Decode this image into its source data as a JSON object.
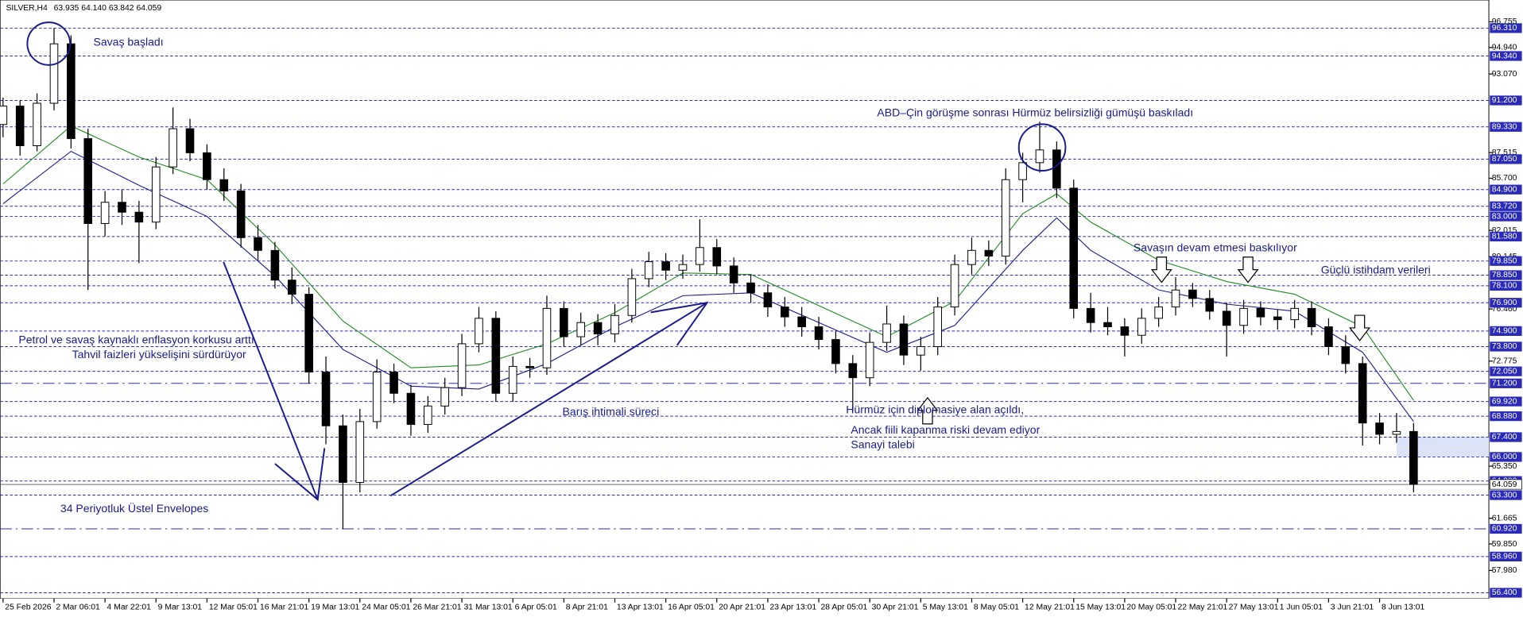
{
  "chart_data": {
    "type": "candlestick",
    "header": {
      "symbol": "SILVER,H4",
      "quote": [
        "63.935",
        "64.140",
        "63.842",
        "64.059"
      ]
    },
    "annotations": [
      "Savaş başladı",
      "ABD–Çin görüşme sonrası Hürmüz belirsizliği gümüşü baskıladı",
      "Savaşın devam etmesi baskılıyor",
      "Güçlü istihdam verileri",
      "Petrol ve savaş kaynaklı enflasyon korkusu arttı",
      "Tahvil faizleri yükselişini sürdürüyor",
      "Barış ihtimali süreci",
      "Hürmüz için diplomasiye alan açıldı,",
      "Ancak fiili kapanma riski devam ediyor",
      "Sanayi talebi",
      "34 Periyotluk Üstel Envelopes"
    ],
    "candle_up_color": "#ffffff",
    "candle_down_color": "#000000",
    "candles": [
      [
        89.5,
        91.4,
        88.6,
        90.8
      ],
      [
        90.8,
        91.2,
        87.3,
        88
      ],
      [
        88,
        91.7,
        87.6,
        91
      ],
      [
        91,
        96.3,
        90.5,
        95.2
      ],
      [
        95.2,
        95.8,
        87.8,
        88.5
      ],
      [
        88.5,
        89.2,
        77.8,
        82.5
      ],
      [
        82.5,
        84.8,
        81.6,
        84
      ],
      [
        84,
        84.9,
        82.4,
        83.3
      ],
      [
        83.3,
        84.1,
        79.7,
        82.6
      ],
      [
        82.6,
        87.2,
        82.1,
        86.5
      ],
      [
        86.5,
        90.7,
        86,
        89.2
      ],
      [
        89.2,
        89.9,
        86.9,
        87.5
      ],
      [
        87.5,
        88.1,
        84.9,
        85.6
      ],
      [
        85.6,
        86.4,
        84.1,
        84.8
      ],
      [
        84.8,
        85.3,
        80.8,
        81.5
      ],
      [
        81.5,
        82.4,
        79.9,
        80.6
      ],
      [
        80.6,
        81.2,
        77.9,
        78.5
      ],
      [
        78.5,
        79.4,
        76.8,
        77.5
      ],
      [
        77.5,
        78,
        71.2,
        72
      ],
      [
        72,
        73.1,
        66.9,
        68.2
      ],
      [
        68.2,
        69,
        60.9,
        64.2
      ],
      [
        64.2,
        69.4,
        63.5,
        68.5
      ],
      [
        68.5,
        72.9,
        68,
        72
      ],
      [
        72,
        72.6,
        69.8,
        70.5
      ],
      [
        70.5,
        71.1,
        67.5,
        68.3
      ],
      [
        68.3,
        70.3,
        67.7,
        69.6
      ],
      [
        69.6,
        71.6,
        69,
        70.9
      ],
      [
        70.9,
        74.7,
        70.3,
        74
      ],
      [
        74,
        76.6,
        73.4,
        75.8
      ],
      [
        75.8,
        76.3,
        69.9,
        70.5
      ],
      [
        70.5,
        73.1,
        69.9,
        72.4
      ],
      [
        72.4,
        73,
        71.6,
        72.3
      ],
      [
        72.3,
        77.4,
        71.8,
        76.5
      ],
      [
        76.5,
        77,
        73.8,
        74.5
      ],
      [
        74.5,
        76.2,
        73.9,
        75.5
      ],
      [
        75.5,
        76.1,
        73.9,
        74.7
      ],
      [
        74.7,
        76.8,
        74.1,
        76
      ],
      [
        76,
        79.3,
        75.5,
        78.6
      ],
      [
        78.6,
        80.5,
        78,
        79.8
      ],
      [
        79.8,
        80.4,
        78.5,
        79.2
      ],
      [
        79.2,
        80.3,
        78.6,
        79.6
      ],
      [
        79.6,
        82.8,
        79.1,
        80.8
      ],
      [
        80.8,
        81.4,
        78.9,
        79.5
      ],
      [
        79.5,
        80.1,
        77.6,
        78.3
      ],
      [
        78.3,
        78.9,
        76.9,
        77.6
      ],
      [
        77.6,
        78.2,
        75.9,
        76.6
      ],
      [
        76.6,
        77.3,
        75.2,
        75.9
      ],
      [
        75.9,
        76.6,
        74.5,
        75.2
      ],
      [
        75.2,
        75.9,
        73.6,
        74.3
      ],
      [
        74.3,
        74.9,
        71.9,
        72.6
      ],
      [
        72.6,
        73.2,
        69.2,
        71.6
      ],
      [
        71.6,
        74.8,
        71,
        74.1
      ],
      [
        74.1,
        76.7,
        73.5,
        75.4
      ],
      [
        75.4,
        76,
        72.5,
        73.2
      ],
      [
        73.2,
        74.5,
        72.1,
        73.8
      ],
      [
        73.8,
        77.3,
        73.2,
        76.6
      ],
      [
        76.6,
        80.3,
        76,
        79.6
      ],
      [
        79.6,
        81.5,
        78.9,
        80.6
      ],
      [
        80.6,
        81.3,
        79.5,
        80.2
      ],
      [
        80.2,
        86.4,
        79.6,
        85.6
      ],
      [
        85.6,
        87.5,
        84,
        86.8
      ],
      [
        86.8,
        89.7,
        86.1,
        87.7
      ],
      [
        87.7,
        88.3,
        84.3,
        85
      ],
      [
        85,
        85.6,
        75.8,
        76.5
      ],
      [
        76.5,
        77.6,
        74.8,
        75.5
      ],
      [
        75.5,
        76.6,
        74.6,
        75.2
      ],
      [
        75.2,
        75.8,
        73.1,
        74.6
      ],
      [
        74.6,
        76.5,
        74,
        75.8
      ],
      [
        75.8,
        77.3,
        75.2,
        76.6
      ],
      [
        76.6,
        78.7,
        76,
        77.8
      ],
      [
        77.8,
        78.3,
        76.6,
        77.2
      ],
      [
        77.2,
        77.8,
        75.7,
        76.3
      ],
      [
        76.3,
        76.9,
        73.1,
        75.3
      ],
      [
        75.3,
        77.1,
        74.7,
        76.5
      ],
      [
        76.5,
        77,
        75.3,
        75.9
      ],
      [
        75.9,
        76.4,
        75,
        75.7
      ],
      [
        75.7,
        77.1,
        75.1,
        76.5
      ],
      [
        76.5,
        77,
        74.6,
        75.2
      ],
      [
        75.2,
        75.8,
        73.2,
        73.8
      ],
      [
        73.8,
        74.6,
        71.9,
        72.6
      ],
      [
        72.6,
        73.1,
        66.8,
        68.4
      ],
      [
        68.4,
        69.1,
        66.9,
        67.6
      ],
      [
        67.6,
        69.1,
        67,
        67.8
      ],
      [
        67.8,
        68.4,
        63.5,
        64.06
      ]
    ],
    "envelopes": [
      {
        "color": "#1f8a1f",
        "x": [
          0,
          4,
          8,
          12,
          16,
          20,
          24,
          28,
          32,
          36,
          40,
          44,
          48,
          52,
          56,
          60,
          62,
          64,
          68,
          72,
          76,
          80,
          83
        ],
        "values": [
          85.3,
          89.4,
          87.2,
          85.6,
          81,
          75.6,
          72.3,
          72.5,
          74,
          76.2,
          79,
          78.9,
          76.7,
          74.5,
          77,
          83.2,
          84.6,
          82.6,
          79.9,
          78.4,
          77.5,
          75.2,
          70
        ]
      },
      {
        "color": "#1a1a8c",
        "x": [
          0,
          4,
          8,
          12,
          16,
          20,
          24,
          28,
          32,
          36,
          40,
          44,
          48,
          52,
          56,
          60,
          62,
          64,
          68,
          72,
          76,
          80,
          83
        ],
        "values": [
          83.9,
          87.6,
          85.2,
          83,
          78.8,
          73.6,
          71,
          70.8,
          72.6,
          75.2,
          77.4,
          77.6,
          75.5,
          73.4,
          75.3,
          80.6,
          82.9,
          80.6,
          77.8,
          76.8,
          76.3,
          73.4,
          68.5
        ]
      }
    ],
    "xlim": [
      -0.17,
      87.43
    ],
    "xticks": [
      {
        "value": 0,
        "label": "25 Feb 2026"
      },
      {
        "value": 3,
        "label": "2 Mar 06:01"
      },
      {
        "value": 6,
        "label": "4 Mar 22:01"
      },
      {
        "value": 9,
        "label": "9 Mar 13:01"
      },
      {
        "value": 12,
        "label": "12 Mar 05:01"
      },
      {
        "value": 15,
        "label": "16 Mar 21:01"
      },
      {
        "value": 18,
        "label": "19 Mar 13:01"
      },
      {
        "value": 21,
        "label": "24 Mar 05:01"
      },
      {
        "value": 24,
        "label": "26 Mar 21:01"
      },
      {
        "value": 27,
        "label": "31 Mar 13:01"
      },
      {
        "value": 30,
        "label": "6 Apr 05:01"
      },
      {
        "value": 33,
        "label": "8 Apr 21:01"
      },
      {
        "value": 36,
        "label": "13 Apr 13:01"
      },
      {
        "value": 39,
        "label": "16 Apr 05:01"
      },
      {
        "value": 42,
        "label": "20 Apr 21:01"
      },
      {
        "value": 45,
        "label": "23 Apr 13:01"
      },
      {
        "value": 48,
        "label": "28 Apr 05:01"
      },
      {
        "value": 51,
        "label": "30 Apr 21:01"
      },
      {
        "value": 54,
        "label": "5 May 13:01"
      },
      {
        "value": 57,
        "label": "8 May 05:01"
      },
      {
        "value": 60,
        "label": "12 May 21:01"
      },
      {
        "value": 63,
        "label": "15 May 13:01"
      },
      {
        "value": 66,
        "label": "20 May 05:01"
      },
      {
        "value": 69,
        "label": "22 May 21:01"
      },
      {
        "value": 72,
        "label": "27 May 13:01"
      },
      {
        "value": 75,
        "label": "1 Jun 05:01"
      },
      {
        "value": 78,
        "label": "3 Jun 21:01"
      },
      {
        "value": 81,
        "label": "8 Jun 13:01"
      }
    ],
    "ylim": [
      55.99,
      97.27
    ],
    "yticks": [
      96.755,
      {
        "value": 94.94,
        "label": "94.940"
      },
      {
        "value": 93.07,
        "label": "93.070"
      },
      87.515,
      {
        "value": 85.7,
        "label": "85.700"
      },
      82.015,
      80.145,
      {
        "value": 76.46,
        "label": "76.460"
      },
      72.775,
      {
        "value": 65.35,
        "label": "65.350"
      },
      61.665,
      {
        "value": 59.85,
        "label": "59.850"
      },
      {
        "value": 57.98,
        "label": "57.980"
      }
    ],
    "levels": [
      {
        "value": 96.31,
        "label": "96.310"
      },
      {
        "value": 94.34,
        "label": "94.340"
      },
      {
        "value": 91.2,
        "label": "91.200"
      },
      {
        "value": 89.33,
        "label": "89.330"
      },
      {
        "value": 87.05,
        "label": "87.050"
      },
      {
        "value": 84.9,
        "label": "84.900"
      },
      {
        "value": 83.72,
        "label": "83.720"
      },
      {
        "value": 83,
        "label": "83.000"
      },
      {
        "value": 81.58,
        "label": "81.580"
      },
      {
        "value": 79.85,
        "label": "79.850"
      },
      {
        "value": 78.85,
        "label": "78.850"
      },
      {
        "value": 78.1,
        "label": "78.100"
      },
      {
        "value": 76.9,
        "label": "76.900"
      },
      {
        "value": 74.9,
        "label": "74.900"
      },
      {
        "value": 73.8,
        "label": "73.800"
      },
      {
        "value": 72.05,
        "label": "72.050"
      },
      {
        "value": 69.92,
        "label": "69.920"
      },
      {
        "value": 68.88,
        "label": "68.880"
      },
      {
        "value": 67.4,
        "label": "67.400"
      },
      {
        "value": 66,
        "label": "66.000"
      },
      {
        "value": 64.3,
        "label": "64.300"
      },
      {
        "value": 63.3,
        "label": "63.300"
      },
      {
        "value": 58.96,
        "label": "58.960"
      },
      {
        "value": 56.4,
        "label": "56.400"
      }
    ],
    "key_levels": [
      {
        "value": 71.2,
        "label": "71.200"
      },
      {
        "value": 60.92,
        "label": "60.920"
      }
    ],
    "last_price": {
      "value": 64.059,
      "label": "64.059"
    },
    "level_color": "#2a2ab8"
  }
}
